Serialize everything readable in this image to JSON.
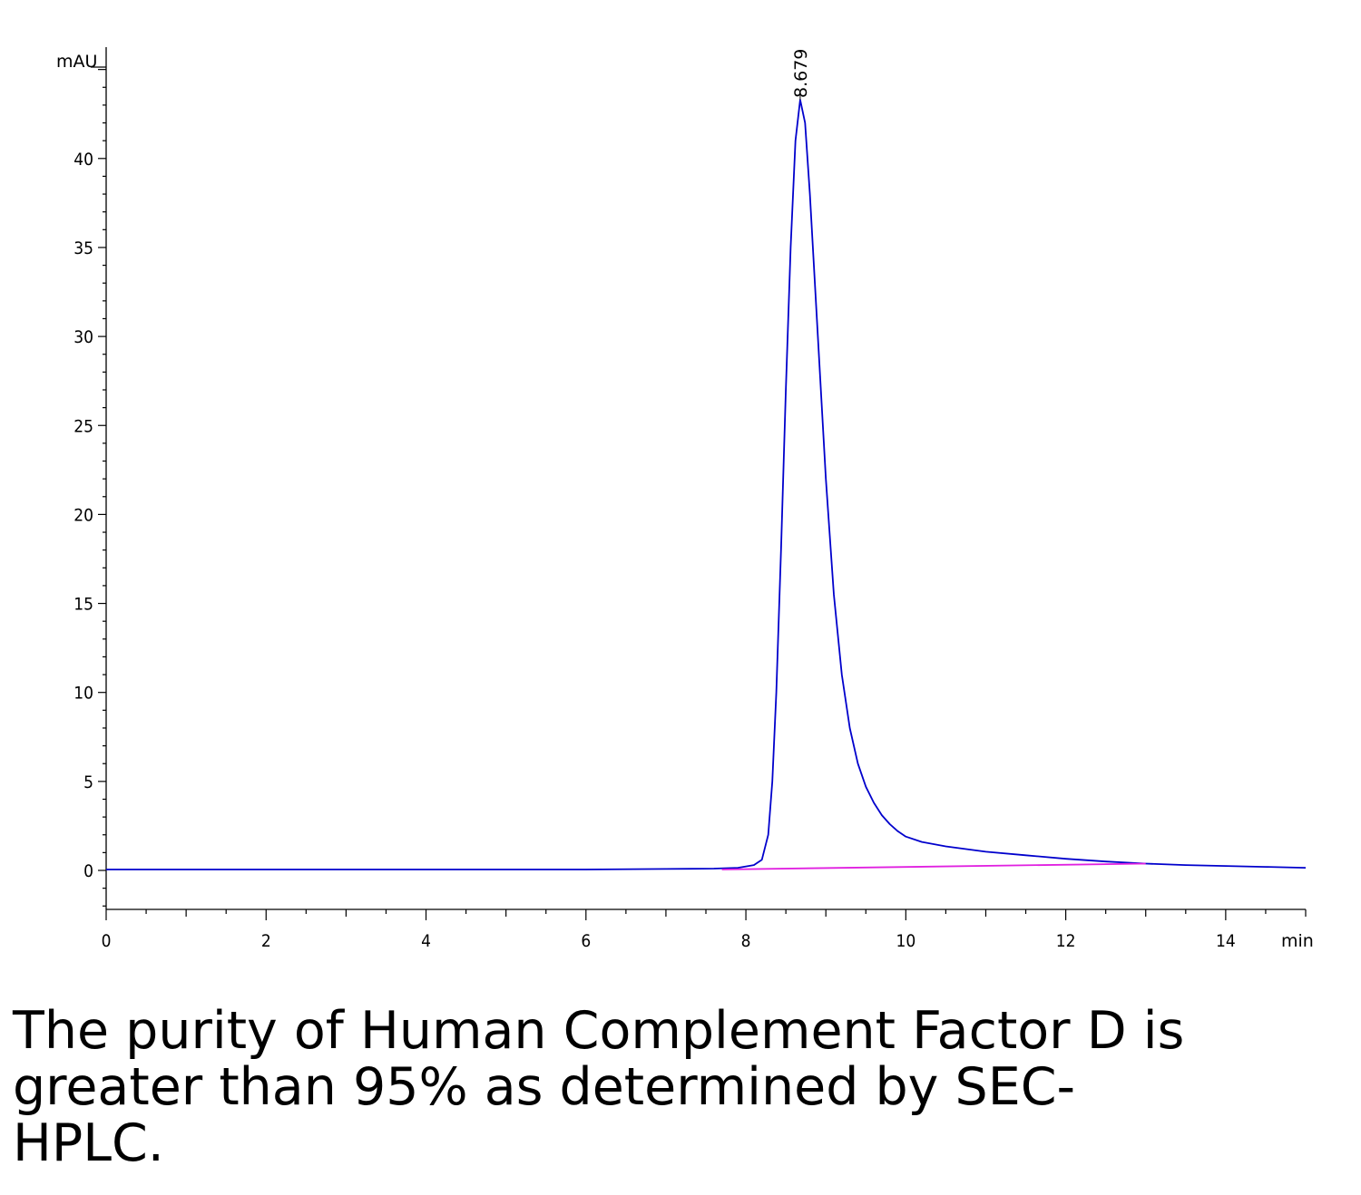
{
  "chart_data": {
    "type": "line",
    "title": "",
    "xlabel": "",
    "ylabel": "",
    "x_unit": "min",
    "y_unit": "mAU",
    "xlim": [
      0,
      15
    ],
    "ylim": [
      -2.2,
      46
    ],
    "x_ticks": [
      0,
      2,
      4,
      6,
      8,
      10,
      12,
      14
    ],
    "x_tick_labels": [
      "0",
      "2",
      "4",
      "6",
      "8",
      "10",
      "12",
      "14"
    ],
    "y_ticks": [
      0,
      5,
      10,
      15,
      20,
      25,
      30,
      35,
      40
    ],
    "y_tick_labels": [
      "0",
      "5",
      "10",
      "15",
      "20",
      "25",
      "30",
      "35",
      "40"
    ],
    "grid": false,
    "peak_annotation": {
      "label": "8.679",
      "x": 8.679,
      "y": 43.3
    },
    "series": [
      {
        "color": "#0000cc",
        "points": [
          [
            0,
            0.05
          ],
          [
            1,
            0.05
          ],
          [
            2,
            0.05
          ],
          [
            3,
            0.05
          ],
          [
            4,
            0.05
          ],
          [
            5,
            0.05
          ],
          [
            6,
            0.05
          ],
          [
            7,
            0.08
          ],
          [
            7.6,
            0.1
          ],
          [
            7.9,
            0.15
          ],
          [
            8.1,
            0.3
          ],
          [
            8.2,
            0.6
          ],
          [
            8.28,
            2.0
          ],
          [
            8.33,
            5.0
          ],
          [
            8.38,
            10.0
          ],
          [
            8.44,
            18.0
          ],
          [
            8.5,
            27.0
          ],
          [
            8.56,
            35.0
          ],
          [
            8.62,
            41.0
          ],
          [
            8.679,
            43.3
          ],
          [
            8.74,
            42.0
          ],
          [
            8.8,
            38.0
          ],
          [
            8.9,
            30.0
          ],
          [
            9.0,
            22.0
          ],
          [
            9.1,
            15.5
          ],
          [
            9.2,
            11.0
          ],
          [
            9.3,
            8.0
          ],
          [
            9.4,
            6.0
          ],
          [
            9.5,
            4.7
          ],
          [
            9.6,
            3.8
          ],
          [
            9.7,
            3.1
          ],
          [
            9.8,
            2.6
          ],
          [
            9.9,
            2.2
          ],
          [
            10.0,
            1.9
          ],
          [
            10.2,
            1.6
          ],
          [
            10.5,
            1.35
          ],
          [
            11.0,
            1.05
          ],
          [
            11.5,
            0.85
          ],
          [
            12.0,
            0.65
          ],
          [
            12.5,
            0.5
          ],
          [
            13.0,
            0.38
          ],
          [
            13.5,
            0.3
          ],
          [
            14.0,
            0.25
          ],
          [
            14.5,
            0.2
          ],
          [
            15.0,
            0.15
          ]
        ]
      },
      {
        "color": "#e020e0",
        "points": [
          [
            7.7,
            0.05
          ],
          [
            13.0,
            0.38
          ]
        ]
      }
    ]
  },
  "caption": {
    "line1": "The purity of Human Complement Factor D is",
    "line2": "greater than 95% as determined by SEC-",
    "line3": "HPLC."
  }
}
